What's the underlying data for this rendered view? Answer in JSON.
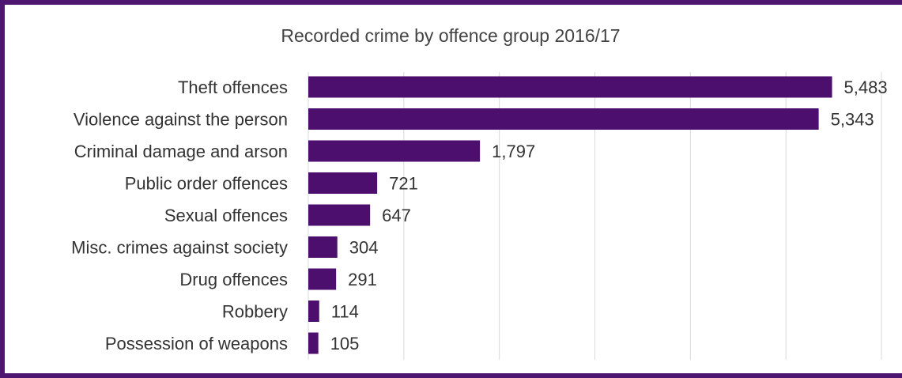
{
  "chart_data": {
    "type": "bar",
    "orientation": "horizontal",
    "title": "Recorded crime by offence group 2016/17",
    "categories": [
      "Theft offences",
      "Violence against the person",
      "Criminal damage and arson",
      "Public order offences",
      "Sexual offences",
      "Misc. crimes against society",
      "Drug offences",
      "Robbery",
      "Possession of weapons"
    ],
    "values": [
      5483,
      5343,
      1797,
      721,
      647,
      304,
      291,
      114,
      105
    ],
    "value_labels": [
      "5,483",
      "5,343",
      "1,797",
      "721",
      "647",
      "304",
      "291",
      "114",
      "105"
    ],
    "xlim": [
      0,
      6000
    ],
    "grid": true,
    "legend": "none",
    "colors": {
      "bar": "#4d0f6e",
      "frame": "#4d1670",
      "grid": "#d9d9d9"
    }
  }
}
